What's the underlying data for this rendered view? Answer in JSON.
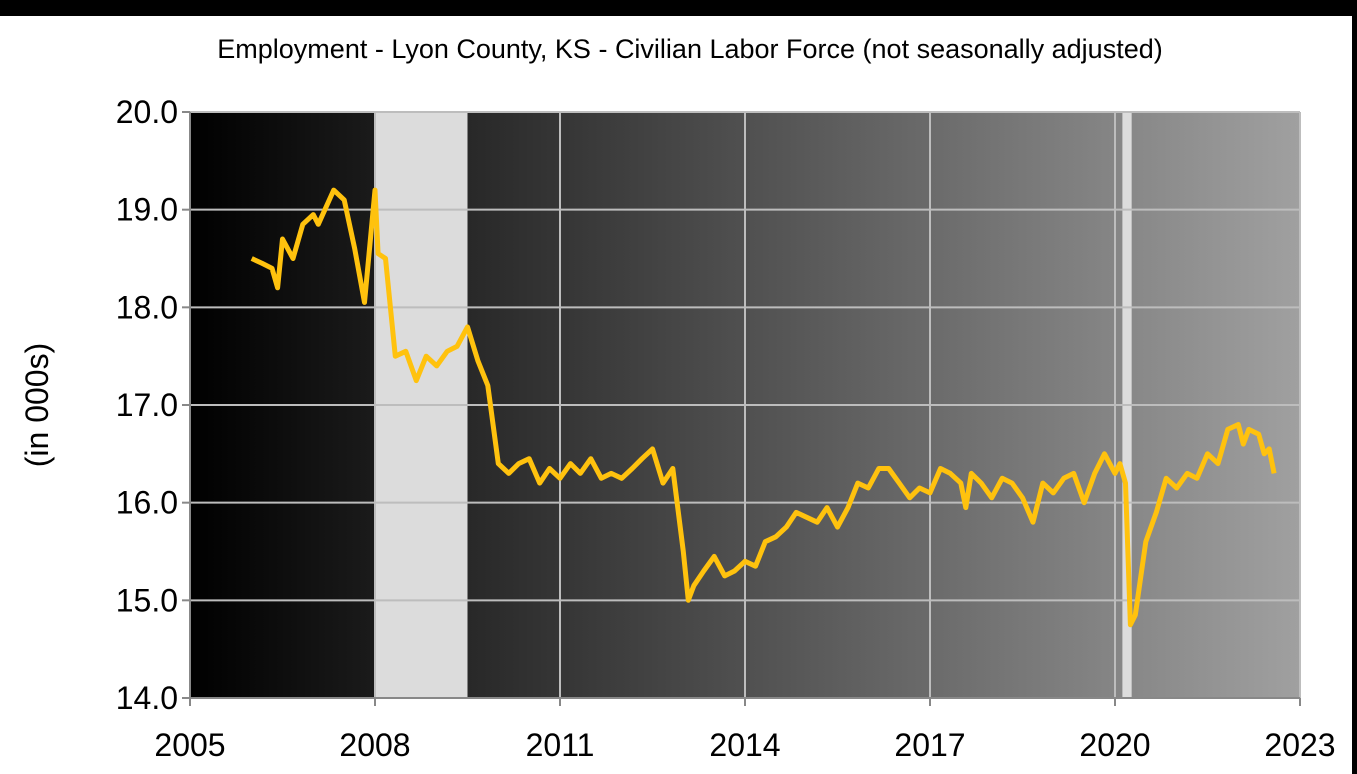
{
  "chart_data": {
    "type": "line",
    "title": "Employment - Lyon County, KS - Civilian Labor Force (not seasonally adjusted)",
    "y_label": "(in 000s)",
    "xlim": [
      2005,
      2023
    ],
    "xticks": [
      2005,
      2008,
      2011,
      2014,
      2017,
      2020,
      2023
    ],
    "ylim": [
      14,
      20
    ],
    "yticks": [
      {
        "value": 14,
        "label": "14.0"
      },
      {
        "value": 15,
        "label": "15.0"
      },
      {
        "value": 16,
        "label": "16.0"
      },
      {
        "value": 17,
        "label": "17.0"
      },
      {
        "value": 18,
        "label": "18.0"
      },
      {
        "value": 19,
        "label": "19.0"
      },
      {
        "value": 20,
        "label": "20.0"
      }
    ],
    "grid": true,
    "shaded_periods": [
      [
        2008.0,
        2009.5
      ],
      [
        2020.12,
        2020.27
      ]
    ],
    "shade_color": "#dcdcdc",
    "background_colors": [
      "#000000",
      "#a0a0a0"
    ],
    "series": [
      {
        "name": "Civilian Labor Force",
        "color": "#ffc20e",
        "x": [
          2006.0,
          2006.17,
          2006.33,
          2006.42,
          2006.5,
          2006.67,
          2006.83,
          2007.0,
          2007.08,
          2007.33,
          2007.5,
          2007.67,
          2007.83,
          2008.0,
          2008.05,
          2008.17,
          2008.33,
          2008.5,
          2008.67,
          2008.83,
          2009.0,
          2009.17,
          2009.33,
          2009.5,
          2009.67,
          2009.83,
          2010.0,
          2010.17,
          2010.33,
          2010.5,
          2010.67,
          2010.83,
          2011.0,
          2011.17,
          2011.33,
          2011.5,
          2011.67,
          2011.83,
          2012.0,
          2012.17,
          2012.33,
          2012.5,
          2012.67,
          2012.83,
          2013.0,
          2013.08,
          2013.17,
          2013.33,
          2013.5,
          2013.67,
          2013.83,
          2014.0,
          2014.17,
          2014.33,
          2014.5,
          2014.67,
          2014.83,
          2015.0,
          2015.17,
          2015.33,
          2015.5,
          2015.67,
          2015.83,
          2016.0,
          2016.17,
          2016.33,
          2016.5,
          2016.67,
          2016.83,
          2017.0,
          2017.17,
          2017.33,
          2017.5,
          2017.58,
          2017.67,
          2017.83,
          2018.0,
          2018.17,
          2018.33,
          2018.5,
          2018.67,
          2018.83,
          2019.0,
          2019.17,
          2019.33,
          2019.5,
          2019.67,
          2019.83,
          2020.0,
          2020.08,
          2020.17,
          2020.25,
          2020.33,
          2020.5,
          2020.67,
          2020.83,
          2021.0,
          2021.17,
          2021.33,
          2021.5,
          2021.67,
          2021.83,
          2022.0,
          2022.08,
          2022.17,
          2022.33,
          2022.42,
          2022.5,
          2022.58
        ],
        "values": [
          18.5,
          18.45,
          18.4,
          18.2,
          18.7,
          18.5,
          18.85,
          18.95,
          18.85,
          19.2,
          19.1,
          18.6,
          18.05,
          19.2,
          18.55,
          18.5,
          17.5,
          17.55,
          17.25,
          17.5,
          17.4,
          17.55,
          17.6,
          17.8,
          17.45,
          17.2,
          16.4,
          16.3,
          16.4,
          16.45,
          16.2,
          16.35,
          16.25,
          16.4,
          16.3,
          16.45,
          16.25,
          16.3,
          16.25,
          16.35,
          16.45,
          16.55,
          16.2,
          16.35,
          15.5,
          15.0,
          15.15,
          15.3,
          15.45,
          15.25,
          15.3,
          15.4,
          15.35,
          15.6,
          15.65,
          15.75,
          15.9,
          15.85,
          15.8,
          15.95,
          15.75,
          15.95,
          16.2,
          16.15,
          16.35,
          16.35,
          16.2,
          16.05,
          16.15,
          16.1,
          16.35,
          16.3,
          16.2,
          15.95,
          16.3,
          16.2,
          16.05,
          16.25,
          16.2,
          16.05,
          15.8,
          16.2,
          16.1,
          16.25,
          16.3,
          16.0,
          16.3,
          16.5,
          16.3,
          16.4,
          16.2,
          14.75,
          14.85,
          15.6,
          15.9,
          16.25,
          16.15,
          16.3,
          16.25,
          16.5,
          16.4,
          16.75,
          16.8,
          16.6,
          16.75,
          16.7,
          16.5,
          16.55,
          16.3
        ]
      }
    ]
  }
}
